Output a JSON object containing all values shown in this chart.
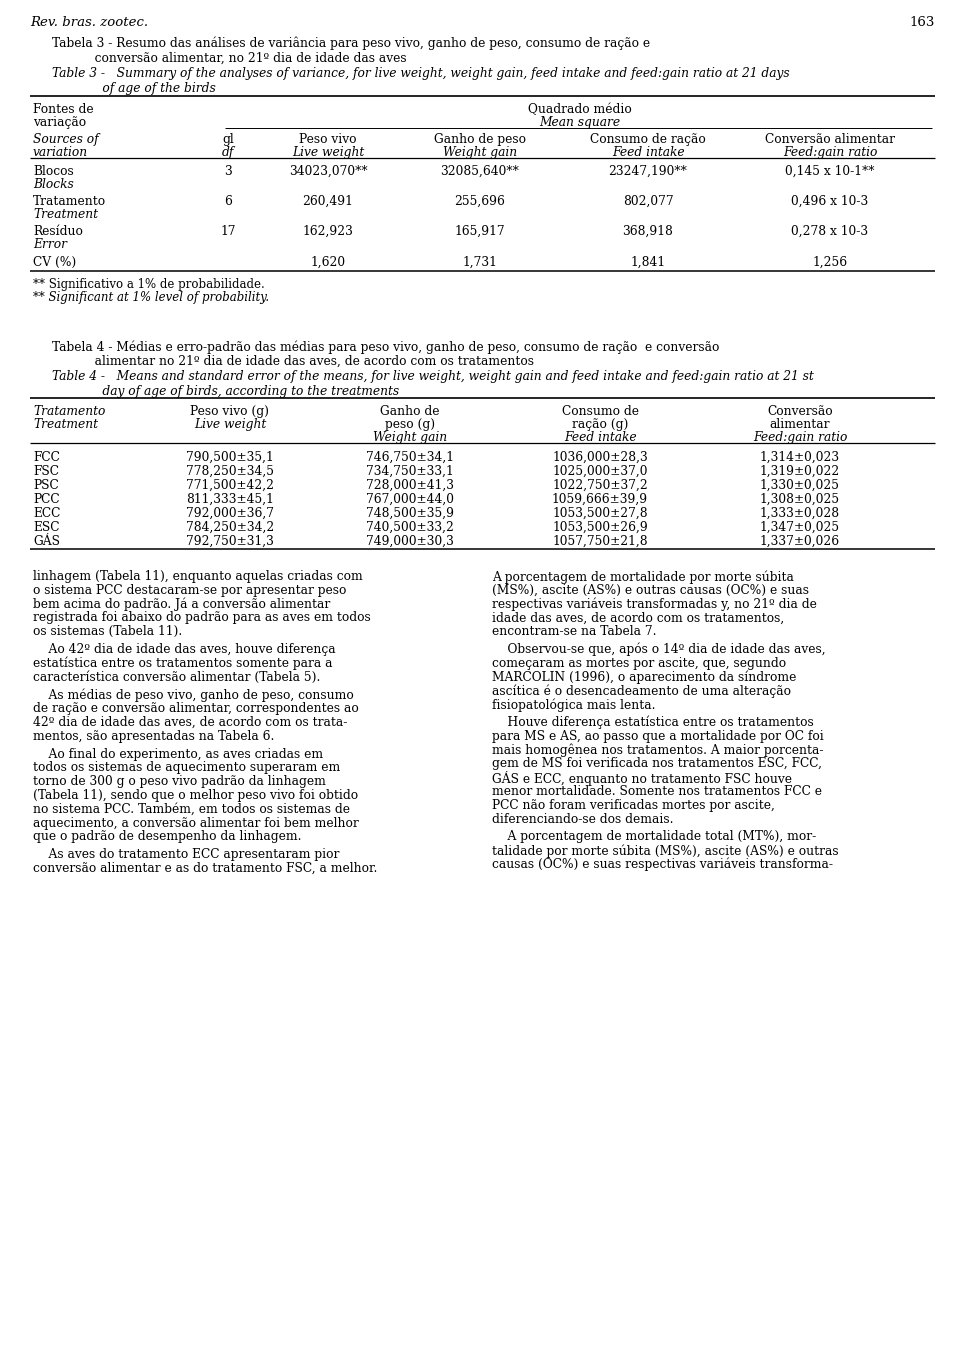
{
  "page_num": "163",
  "journal": "Rev. bras. zootec.",
  "bg_color": "#ffffff",
  "text_color": "#000000",
  "table3_title1": "Tabela 3 - Resumo das análises de variância para peso vivo, ganho de peso, consumo de ração e",
  "table3_title2": "           conversão alimentar, no 21º dia de idade das aves",
  "table3_title3": "Table 3 -   Summary of the analyses of variance, for live weight, weight gain, feed intake and feed:gain ratio at 21 days",
  "table3_title4": "             of age of the birds",
  "table4_title1": "Tabela 4 - Médias e erro-padrão das médias para peso vivo, ganho de peso, consumo de ração  e conversão",
  "table4_title2": "           alimentar no 21º dia de idade das aves, de acordo com os tratamentos",
  "table4_title3": "Table 4 -   Means and standard error of the means, for live weight, weight gain and feed intake and feed:gain ratio at 21 st",
  "table4_title4": "             day of age of birds, according to the treatments",
  "table3_rows": [
    [
      "Blocos",
      "Blocks",
      "3",
      "34023,070**",
      "32085,640**",
      "23247,190**",
      "0,145 x 10-1**"
    ],
    [
      "Tratamento",
      "Treatment",
      "6",
      "260,491",
      "255,696",
      "802,077",
      "0,496 x 10-3"
    ],
    [
      "Resíduo",
      "Error",
      "17",
      "162,923",
      "165,917",
      "368,918",
      "0,278 x 10-3"
    ],
    [
      "CV (%)",
      "",
      "",
      "1,620",
      "1,731",
      "1,841",
      "1,256"
    ]
  ],
  "table4_rows": [
    [
      "FCC",
      "790,500±35,1",
      "746,750±34,1",
      "1036,000±28,3",
      "1,314±0,023"
    ],
    [
      "FSC",
      "778,250±34,5",
      "734,750±33,1",
      "1025,000±37,0",
      "1,319±0,022"
    ],
    [
      "PSC",
      "771,500±42,2",
      "728,000±41,3",
      "1022,750±37,2",
      "1,330±0,025"
    ],
    [
      "PCC",
      "811,333±45,1",
      "767,000±44,0",
      "1059,666±39,9",
      "1,308±0,025"
    ],
    [
      "ECC",
      "792,000±36,7",
      "748,500±35,9",
      "1053,500±27,8",
      "1,333±0,028"
    ],
    [
      "ESC",
      "784,250±34,2",
      "740,500±33,2",
      "1053,500±26,9",
      "1,347±0,025"
    ],
    [
      "GÁS",
      "792,750±31,3",
      "749,000±30,3",
      "1057,750±21,8",
      "1,337±0,026"
    ]
  ],
  "footnote1": "** Significativo a 1% de probabilidade.",
  "footnote2": "** Significant at 1% level of probability.",
  "body_left": [
    "linhagem (Tabela 11), enquanto aquelas criadas com",
    "o sistema PCC destacaram-se por apresentar peso",
    "bem acima do padrão. Já a conversão alimentar",
    "registrada foi abaixo do padrão para as aves em todos",
    "os sistemas (Tabela 11).",
    "",
    "    Ao 42º dia de idade das aves, houve diferença",
    "estatística entre os tratamentos somente para a",
    "característica conversão alimentar (Tabela 5).",
    "",
    "    As médias de peso vivo, ganho de peso, consumo",
    "de ração e conversão alimentar, correspondentes ao",
    "42º dia de idade das aves, de acordo com os trata-",
    "mentos, são apresentadas na Tabela 6.",
    "",
    "    Ao final do experimento, as aves criadas em",
    "todos os sistemas de aquecimento superaram em",
    "torno de 300 g o peso vivo padrão da linhagem",
    "(Tabela 11), sendo que o melhor peso vivo foi obtido",
    "no sistema PCC. Também, em todos os sistemas de",
    "aquecimento, a conversão alimentar foi bem melhor",
    "que o padrão de desempenho da linhagem.",
    "",
    "    As aves do tratamento ECC apresentaram pior",
    "conversão alimentar e as do tratamento FSC, a melhor."
  ],
  "body_right": [
    "A porcentagem de mortalidade por morte súbita",
    "(MS%), ascite (AS%) e outras causas (OC%) e suas",
    "respectivas variáveis transformadas y, no 21º dia de",
    "idade das aves, de acordo com os tratamentos,",
    "encontram-se na Tabela 7.",
    "",
    "    Observou-se que, após o 14º dia de idade das aves,",
    "começaram as mortes por ascite, que, segundo",
    "MARCOLIN (1996), o aparecimento da síndrome",
    "ascítica é o desencadeamento de uma alteração",
    "fisiopatológica mais lenta.",
    "",
    "    Houve diferença estatística entre os tratamentos",
    "para MS e AS, ao passo que a mortalidade por OC foi",
    "mais homogênea nos tratamentos. A maior porcenta-",
    "gem de MS foi verificada nos tratamentos ESC, FCC,",
    "GÁS e ECC, enquanto no tratamento FSC houve",
    "menor mortalidade. Somente nos tratamentos FCC e",
    "PCC não foram verificadas mortes por ascite,",
    "diferenciando-se dos demais.",
    "",
    "    A porcentagem de mortalidade total (MT%), mor-",
    "talidade por morte súbita (MS%), ascite (AS%) e outras",
    "causas (OC%) e suas respectivas variáveis transforma-"
  ]
}
